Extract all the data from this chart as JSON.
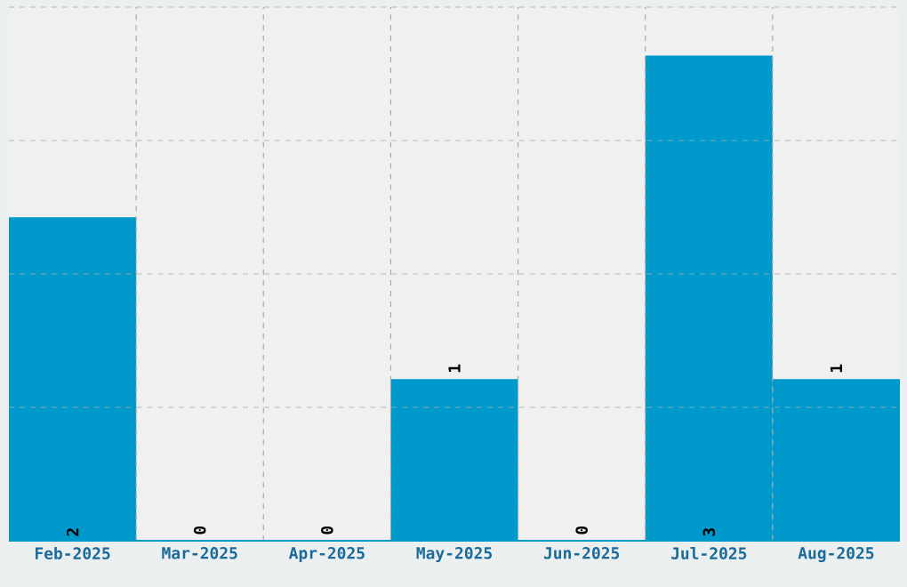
{
  "chart_data": {
    "type": "bar",
    "categories": [
      "Feb-2025",
      "Mar-2025",
      "Apr-2025",
      "May-2025",
      "Jun-2025",
      "Jul-2025",
      "Aug-2025"
    ],
    "values": [
      2,
      0,
      0,
      1,
      0,
      3,
      1
    ],
    "color": "#0099cc",
    "ylim": [
      0,
      3.3
    ],
    "grid": true,
    "data_labels": true,
    "tick_labels": "x"
  }
}
